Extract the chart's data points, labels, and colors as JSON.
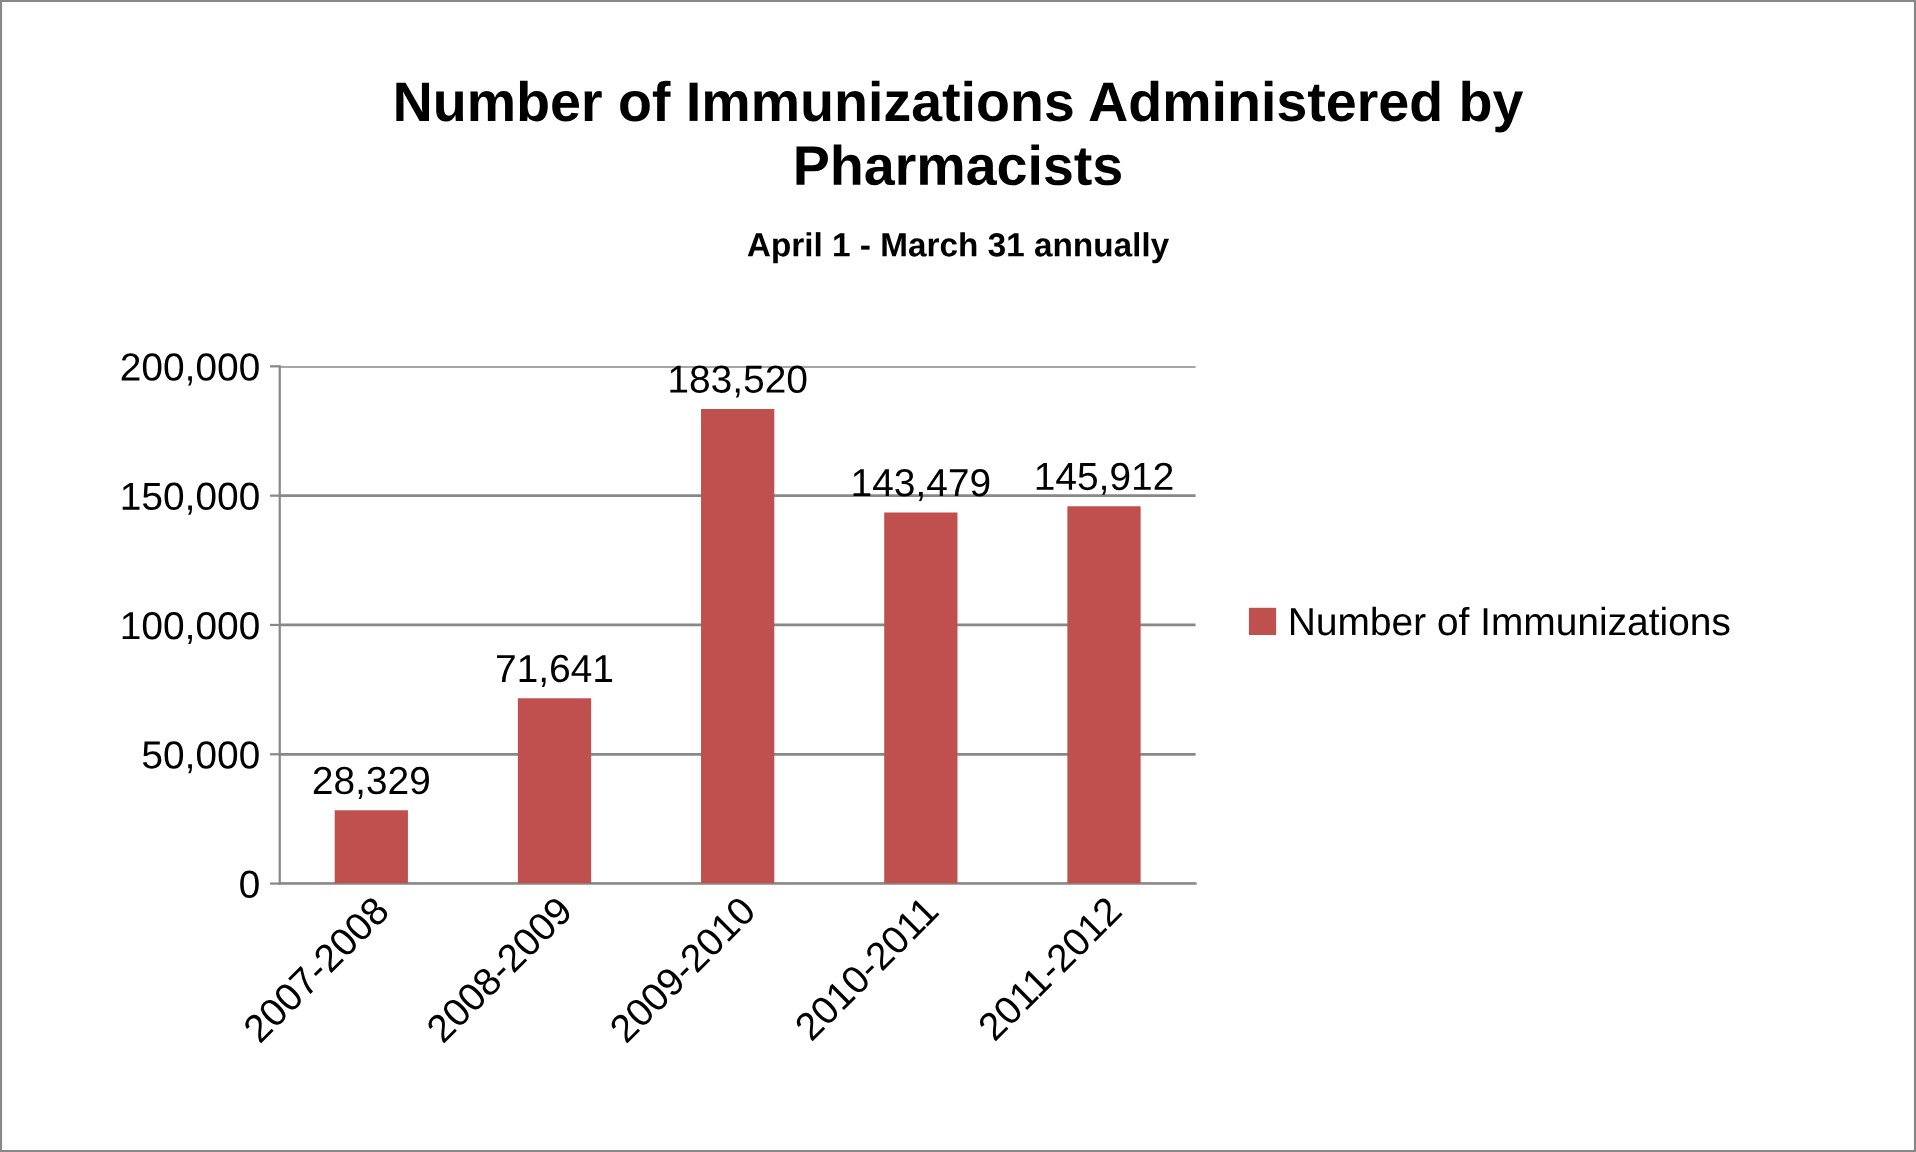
{
  "chart_data": {
    "type": "bar",
    "title": "Number of Immunizations Administered by Pharmacists",
    "subtitle": "April 1 - March 31 annually",
    "categories": [
      "2007-2008",
      "2008-2009",
      "2009-2010",
      "2010-2011",
      "2011-2012"
    ],
    "series": [
      {
        "name": "Number of Immunizations",
        "color": "#c0504d",
        "values": [
          28329,
          71641,
          183520,
          143479,
          145912
        ]
      }
    ],
    "ylim": [
      0,
      200000
    ],
    "yticks": [
      0,
      {
        "value": 50000,
        "label": "50,000"
      },
      {
        "value": 100000,
        "label": "100,000"
      },
      {
        "value": 150000,
        "label": "150,000"
      },
      {
        "value": 200000,
        "label": "200,000"
      }
    ],
    "grid": "y",
    "legend": "right",
    "value_labels": [
      "28,329",
      "71,641",
      "183,520",
      "143,479",
      "145,912"
    ]
  }
}
